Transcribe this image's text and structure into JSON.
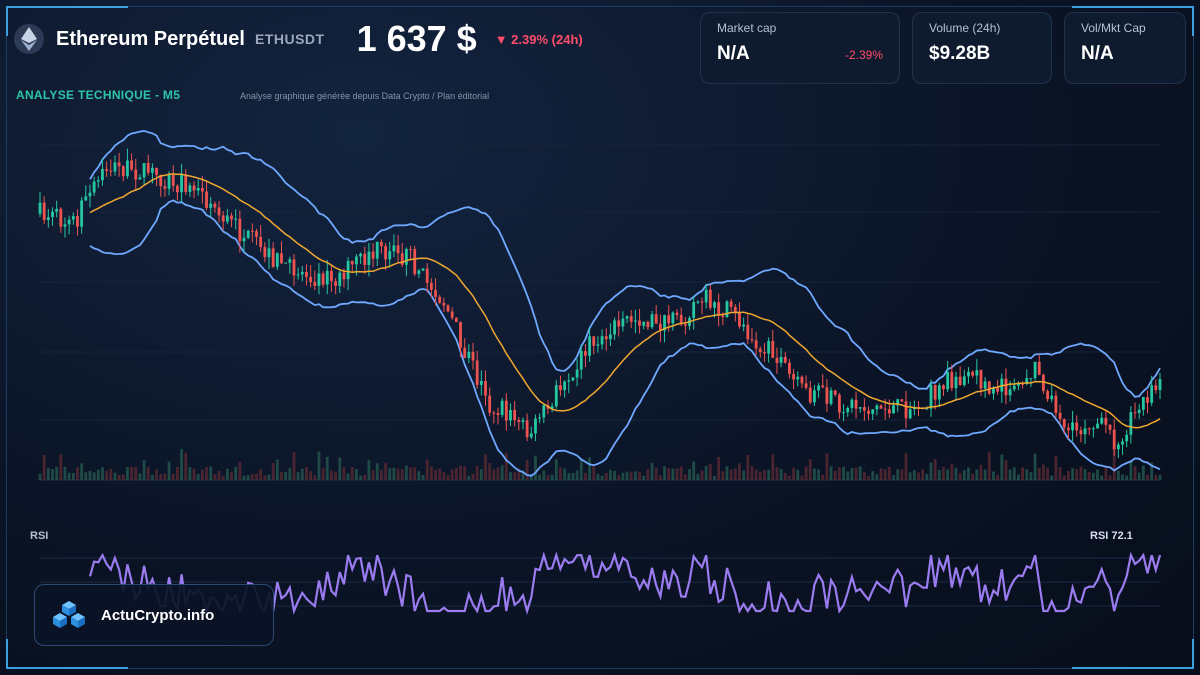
{
  "header": {
    "title": "Ethereum Perpétuel",
    "symbol": "ETHUSDT",
    "price": "1 637 $",
    "change": "▼ 2.39% (24h)"
  },
  "cards": [
    {
      "label": "Market cap",
      "value": "N/A",
      "change": "-2.39%"
    },
    {
      "label": "Volume (24h)",
      "value": "$9.28B",
      "change": ""
    },
    {
      "label": "Vol/Mkt Cap",
      "value": "N/A",
      "change": ""
    }
  ],
  "section": {
    "title": "ANALYSE TECHNIQUE - M5",
    "subtitle": "Analyse graphique générée depuis Data Crypto / Plan éditorial"
  },
  "rsi": {
    "label": "RSI",
    "value_label": "RSI 72.1"
  },
  "brand": {
    "name": "ActuCrypto.info",
    "icon": "cubes-logo-icon"
  },
  "colors": {
    "up": "#26c6a0",
    "down": "#ef5350",
    "bollinger": "#6fa8ff",
    "ma": "#f0a830",
    "rsi": "#9b7cf0",
    "accent": "#2ec4a8"
  },
  "chart_data": {
    "type": "candlestick",
    "overlays": [
      "bollinger-bands",
      "moving-average",
      "volume"
    ],
    "price_trend": [
      [
        0,
        0.22
      ],
      [
        3,
        0.25
      ],
      [
        6,
        0.08
      ],
      [
        10,
        0.1
      ],
      [
        14,
        0.15
      ],
      [
        18,
        0.28
      ],
      [
        22,
        0.38
      ],
      [
        26,
        0.42
      ],
      [
        30,
        0.33
      ],
      [
        33,
        0.35
      ],
      [
        36,
        0.48
      ],
      [
        40,
        0.78
      ],
      [
        44,
        0.87
      ],
      [
        47,
        0.7
      ],
      [
        50,
        0.58
      ],
      [
        53,
        0.53
      ],
      [
        57,
        0.55
      ],
      [
        59,
        0.46
      ],
      [
        62,
        0.53
      ],
      [
        65,
        0.63
      ],
      [
        68,
        0.75
      ],
      [
        71,
        0.78
      ],
      [
        74,
        0.8
      ],
      [
        78,
        0.8
      ],
      [
        82,
        0.7
      ],
      [
        86,
        0.74
      ],
      [
        89,
        0.68
      ],
      [
        92,
        0.88
      ],
      [
        94,
        0.83
      ],
      [
        96,
        0.9
      ],
      [
        98,
        0.8
      ],
      [
        100,
        0.72
      ]
    ],
    "rsi_latest": 72.1
  }
}
